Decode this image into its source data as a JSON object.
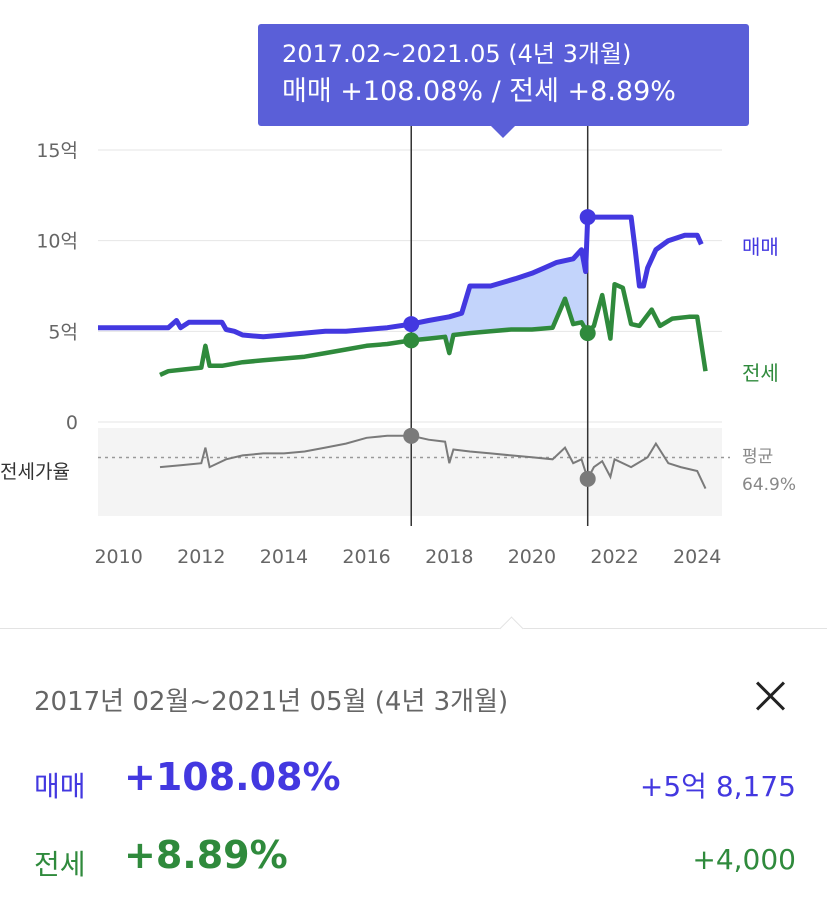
{
  "colors": {
    "sale": "#4338e0",
    "lease": "#2f8a3c",
    "ratio": "#7a7a7a",
    "tooltip_bg": "#5a5fd8"
  },
  "tooltip": {
    "line1": "2017.02~2021.05 (4년 3개월)",
    "line2": "매매 +108.08%  /  전세 +8.89%"
  },
  "chart_data": {
    "type": "line",
    "x_range": [
      2009.5,
      2024.6
    ],
    "x_ticks": [
      "2010",
      "2012",
      "2014",
      "2016",
      "2018",
      "2020",
      "2022",
      "2024"
    ],
    "y_ticks": [
      "15억",
      "10억",
      "5억",
      "0"
    ],
    "ylim": [
      0,
      15
    ],
    "ratio_label": "전세가율",
    "ratio_avg_label": "평균",
    "ratio_avg_value": "64.9%",
    "ratio_avg": 64.9,
    "ratio_ylim": [
      35,
      80
    ],
    "selection": {
      "start": 2017.08,
      "end": 2021.35
    },
    "series": [
      {
        "name": "매매",
        "key": "sale",
        "points": [
          [
            2009.5,
            5.2
          ],
          [
            2010.5,
            5.2
          ],
          [
            2011.2,
            5.2
          ],
          [
            2011.4,
            5.6
          ],
          [
            2011.5,
            5.2
          ],
          [
            2011.7,
            5.5
          ],
          [
            2012.0,
            5.5
          ],
          [
            2012.5,
            5.5
          ],
          [
            2012.6,
            5.1
          ],
          [
            2012.8,
            5.0
          ],
          [
            2013.0,
            4.8
          ],
          [
            2013.5,
            4.7
          ],
          [
            2014.0,
            4.8
          ],
          [
            2014.5,
            4.9
          ],
          [
            2015.0,
            5.0
          ],
          [
            2015.5,
            5.0
          ],
          [
            2016.0,
            5.1
          ],
          [
            2016.5,
            5.2
          ],
          [
            2017.08,
            5.4
          ],
          [
            2017.5,
            5.6
          ],
          [
            2018.0,
            5.8
          ],
          [
            2018.3,
            6.0
          ],
          [
            2018.5,
            7.5
          ],
          [
            2019.0,
            7.5
          ],
          [
            2019.3,
            7.7
          ],
          [
            2019.6,
            7.9
          ],
          [
            2020.0,
            8.2
          ],
          [
            2020.3,
            8.5
          ],
          [
            2020.6,
            8.8
          ],
          [
            2021.0,
            9.0
          ],
          [
            2021.2,
            9.5
          ],
          [
            2021.3,
            8.3
          ],
          [
            2021.35,
            11.3
          ],
          [
            2021.8,
            11.3
          ],
          [
            2022.4,
            11.3
          ],
          [
            2022.5,
            9.5
          ],
          [
            2022.6,
            7.5
          ],
          [
            2022.7,
            7.5
          ],
          [
            2022.8,
            8.5
          ],
          [
            2023.0,
            9.5
          ],
          [
            2023.3,
            10.0
          ],
          [
            2023.7,
            10.3
          ],
          [
            2024.0,
            10.3
          ],
          [
            2024.1,
            9.8
          ]
        ]
      },
      {
        "name": "전세",
        "key": "lease",
        "points": [
          [
            2011.0,
            2.6
          ],
          [
            2011.2,
            2.8
          ],
          [
            2011.6,
            2.9
          ],
          [
            2012.0,
            3.0
          ],
          [
            2012.1,
            4.2
          ],
          [
            2012.2,
            3.1
          ],
          [
            2012.5,
            3.1
          ],
          [
            2013.0,
            3.3
          ],
          [
            2013.5,
            3.4
          ],
          [
            2014.0,
            3.5
          ],
          [
            2014.5,
            3.6
          ],
          [
            2015.0,
            3.8
          ],
          [
            2015.5,
            4.0
          ],
          [
            2016.0,
            4.2
          ],
          [
            2016.5,
            4.3
          ],
          [
            2017.08,
            4.5
          ],
          [
            2017.5,
            4.6
          ],
          [
            2017.9,
            4.7
          ],
          [
            2018.0,
            3.8
          ],
          [
            2018.1,
            4.8
          ],
          [
            2018.5,
            4.9
          ],
          [
            2019.0,
            5.0
          ],
          [
            2019.5,
            5.1
          ],
          [
            2020.0,
            5.1
          ],
          [
            2020.5,
            5.2
          ],
          [
            2020.8,
            6.8
          ],
          [
            2021.0,
            5.4
          ],
          [
            2021.2,
            5.5
          ],
          [
            2021.35,
            4.9
          ],
          [
            2021.5,
            5.3
          ],
          [
            2021.7,
            7.0
          ],
          [
            2021.9,
            4.6
          ],
          [
            2022.0,
            7.6
          ],
          [
            2022.2,
            7.4
          ],
          [
            2022.4,
            5.4
          ],
          [
            2022.6,
            5.3
          ],
          [
            2022.9,
            6.2
          ],
          [
            2023.1,
            5.3
          ],
          [
            2023.4,
            5.7
          ],
          [
            2023.8,
            5.8
          ],
          [
            2024.0,
            5.8
          ],
          [
            2024.2,
            2.8
          ]
        ]
      },
      {
        "name": "전세가율",
        "key": "ratio",
        "points": [
          [
            2011.0,
            60
          ],
          [
            2011.5,
            61
          ],
          [
            2012.0,
            62
          ],
          [
            2012.1,
            70
          ],
          [
            2012.2,
            60
          ],
          [
            2012.6,
            64
          ],
          [
            2013.0,
            66
          ],
          [
            2013.5,
            67
          ],
          [
            2014.0,
            67
          ],
          [
            2014.5,
            68
          ],
          [
            2015.0,
            70
          ],
          [
            2015.5,
            72
          ],
          [
            2016.0,
            75
          ],
          [
            2016.5,
            76
          ],
          [
            2017.08,
            76
          ],
          [
            2017.5,
            74
          ],
          [
            2017.9,
            73
          ],
          [
            2018.0,
            62
          ],
          [
            2018.1,
            69
          ],
          [
            2018.5,
            68
          ],
          [
            2019.0,
            67
          ],
          [
            2019.5,
            66
          ],
          [
            2020.0,
            65
          ],
          [
            2020.5,
            64
          ],
          [
            2020.8,
            70
          ],
          [
            2021.0,
            62
          ],
          [
            2021.2,
            64
          ],
          [
            2021.35,
            54
          ],
          [
            2021.5,
            60
          ],
          [
            2021.7,
            63
          ],
          [
            2021.9,
            55
          ],
          [
            2022.0,
            64
          ],
          [
            2022.4,
            60
          ],
          [
            2022.8,
            65
          ],
          [
            2023.0,
            72
          ],
          [
            2023.3,
            62
          ],
          [
            2023.6,
            60
          ],
          [
            2024.0,
            58
          ],
          [
            2024.2,
            49
          ]
        ]
      }
    ]
  },
  "panel": {
    "period": "2017년 02월~2021년 05월 (4년 3개월)",
    "sale": {
      "label": "매매",
      "pct": "+108.08%",
      "amount": "+5억 8,175"
    },
    "lease": {
      "label": "전세",
      "pct": "+8.89%",
      "amount": "+4,000"
    }
  }
}
